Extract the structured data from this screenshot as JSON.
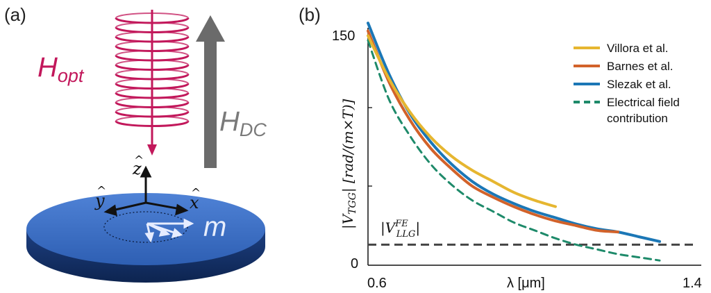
{
  "panels": {
    "a_label": "(a)",
    "b_label": "(b)"
  },
  "left": {
    "h_opt": {
      "main": "H",
      "sub": "opt"
    },
    "h_dc": {
      "main": "H",
      "sub": "DC"
    },
    "axes": {
      "z": "z",
      "y": "y",
      "x": "x",
      "hat": "^"
    },
    "m": "m",
    "colors": {
      "coil": "#c2185b",
      "arrow": "#6b6b6b",
      "disk": "#2f5fb0"
    }
  },
  "chart_data": {
    "type": "line",
    "xlabel": "λ [μm]",
    "ylabel_parts": {
      "open": "|V",
      "sub": "TGG",
      "close": "|  [rad/(m×T)]"
    },
    "xticks": [
      "0.6",
      "1.4"
    ],
    "yticks": [
      "0",
      "150"
    ],
    "xlim": [
      0.6,
      1.4
    ],
    "ylim": [
      0,
      150
    ],
    "hline": {
      "label_parts": {
        "open": "|V",
        "sup": "FE",
        "sub": "LLG",
        "close": "|"
      },
      "value": 13
    },
    "series": [
      {
        "name": "Villora et al.",
        "color": "#e6b630",
        "dash": "solid",
        "points": [
          [
            0.6,
            145
          ],
          [
            0.65,
            118
          ],
          [
            0.7,
            97
          ],
          [
            0.75,
            81
          ],
          [
            0.8,
            69
          ],
          [
            0.85,
            60
          ],
          [
            0.9,
            53
          ],
          [
            0.95,
            46
          ],
          [
            1.0,
            41
          ],
          [
            1.05,
            37
          ]
        ]
      },
      {
        "name": "Barnes et al.",
        "color": "#d2622a",
        "dash": "solid",
        "points": [
          [
            0.6,
            148
          ],
          [
            0.65,
            116
          ],
          [
            0.7,
            92
          ],
          [
            0.75,
            74
          ],
          [
            0.8,
            61
          ],
          [
            0.85,
            50
          ],
          [
            0.9,
            43
          ],
          [
            0.95,
            37
          ],
          [
            1.0,
            32
          ],
          [
            1.05,
            28
          ],
          [
            1.1,
            25
          ],
          [
            1.15,
            22
          ],
          [
            1.2,
            21
          ]
        ]
      },
      {
        "name": "Slezak et al.",
        "color": "#1b77b6",
        "dash": "solid",
        "points": [
          [
            0.6,
            153
          ],
          [
            0.65,
            121
          ],
          [
            0.7,
            96
          ],
          [
            0.75,
            78
          ],
          [
            0.8,
            64
          ],
          [
            0.85,
            53
          ],
          [
            0.9,
            45
          ],
          [
            0.95,
            39
          ],
          [
            1.0,
            34
          ],
          [
            1.05,
            30
          ],
          [
            1.1,
            26
          ],
          [
            1.15,
            23
          ],
          [
            1.2,
            21
          ],
          [
            1.25,
            18
          ],
          [
            1.3,
            15
          ]
        ]
      },
      {
        "name": "Electrical field contribution",
        "color": "#1e8a6a",
        "dash": "dashed",
        "points": [
          [
            0.6,
            142
          ],
          [
            0.65,
            105
          ],
          [
            0.7,
            82
          ],
          [
            0.75,
            64
          ],
          [
            0.8,
            51
          ],
          [
            0.85,
            41
          ],
          [
            0.9,
            34
          ],
          [
            0.95,
            27
          ],
          [
            1.0,
            22
          ],
          [
            1.05,
            17
          ],
          [
            1.1,
            13
          ],
          [
            1.15,
            10
          ],
          [
            1.2,
            7
          ],
          [
            1.25,
            5
          ],
          [
            1.3,
            3
          ]
        ]
      }
    ],
    "legend": {
      "placement": "top-right",
      "entries": [
        "Villora et al.",
        "Barnes et al.",
        "Slezak et al.",
        "Electrical field",
        "contribution"
      ]
    }
  }
}
